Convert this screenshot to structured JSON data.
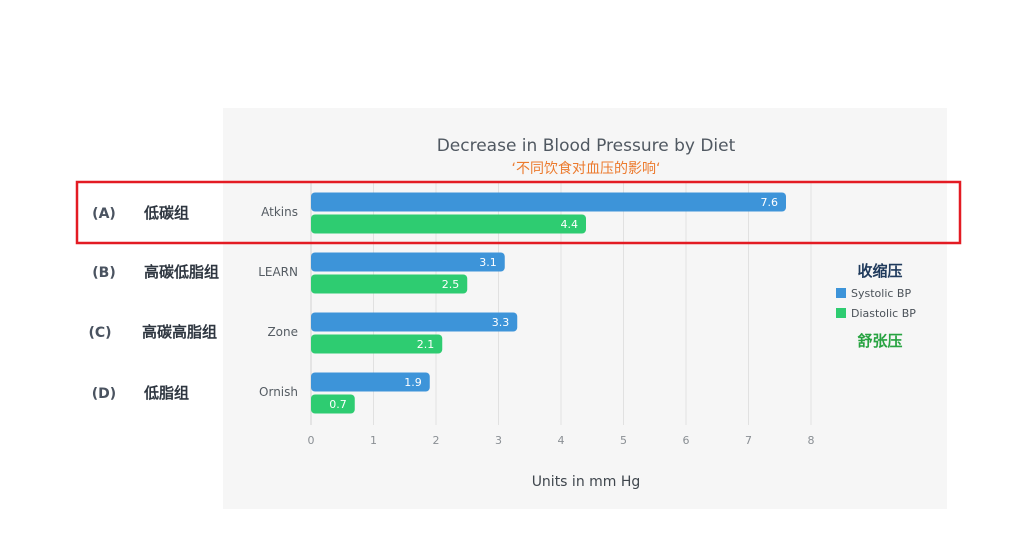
{
  "chart_data": {
    "type": "bar",
    "orientation": "horizontal",
    "title": "Decrease in Blood Pressure by Diet",
    "subtitle": "‘不同饮食对血压的影响‘",
    "categories": [
      "Atkins",
      "LEARN",
      "Zone",
      "Ornish"
    ],
    "series": [
      {
        "name": "Systolic BP",
        "values": [
          7.6,
          3.1,
          3.3,
          1.9
        ],
        "color": "#3d94d9"
      },
      {
        "name": "Diastolic BP",
        "values": [
          4.4,
          2.5,
          2.1,
          0.7
        ],
        "color": "#2ecc71"
      }
    ],
    "xlabel": "Units in mm Hg",
    "xlim": [
      0,
      8
    ],
    "xticks": [
      "0",
      "1",
      "2",
      "3",
      "4",
      "5",
      "6",
      "7",
      "8"
    ],
    "grid": true,
    "legend_position": "right"
  },
  "annotations": {
    "legend_systolic_cn": "收缩压",
    "legend_diastolic_cn": "舒张压",
    "rows": [
      {
        "letter": "(A)",
        "label": "低碳组"
      },
      {
        "letter": "(B)",
        "label": "高碳低脂组"
      },
      {
        "letter": "(C)",
        "label": "高碳高脂组"
      },
      {
        "letter": "(D)",
        "label": "低脂组"
      }
    ],
    "highlight_color": "#e31b23"
  }
}
